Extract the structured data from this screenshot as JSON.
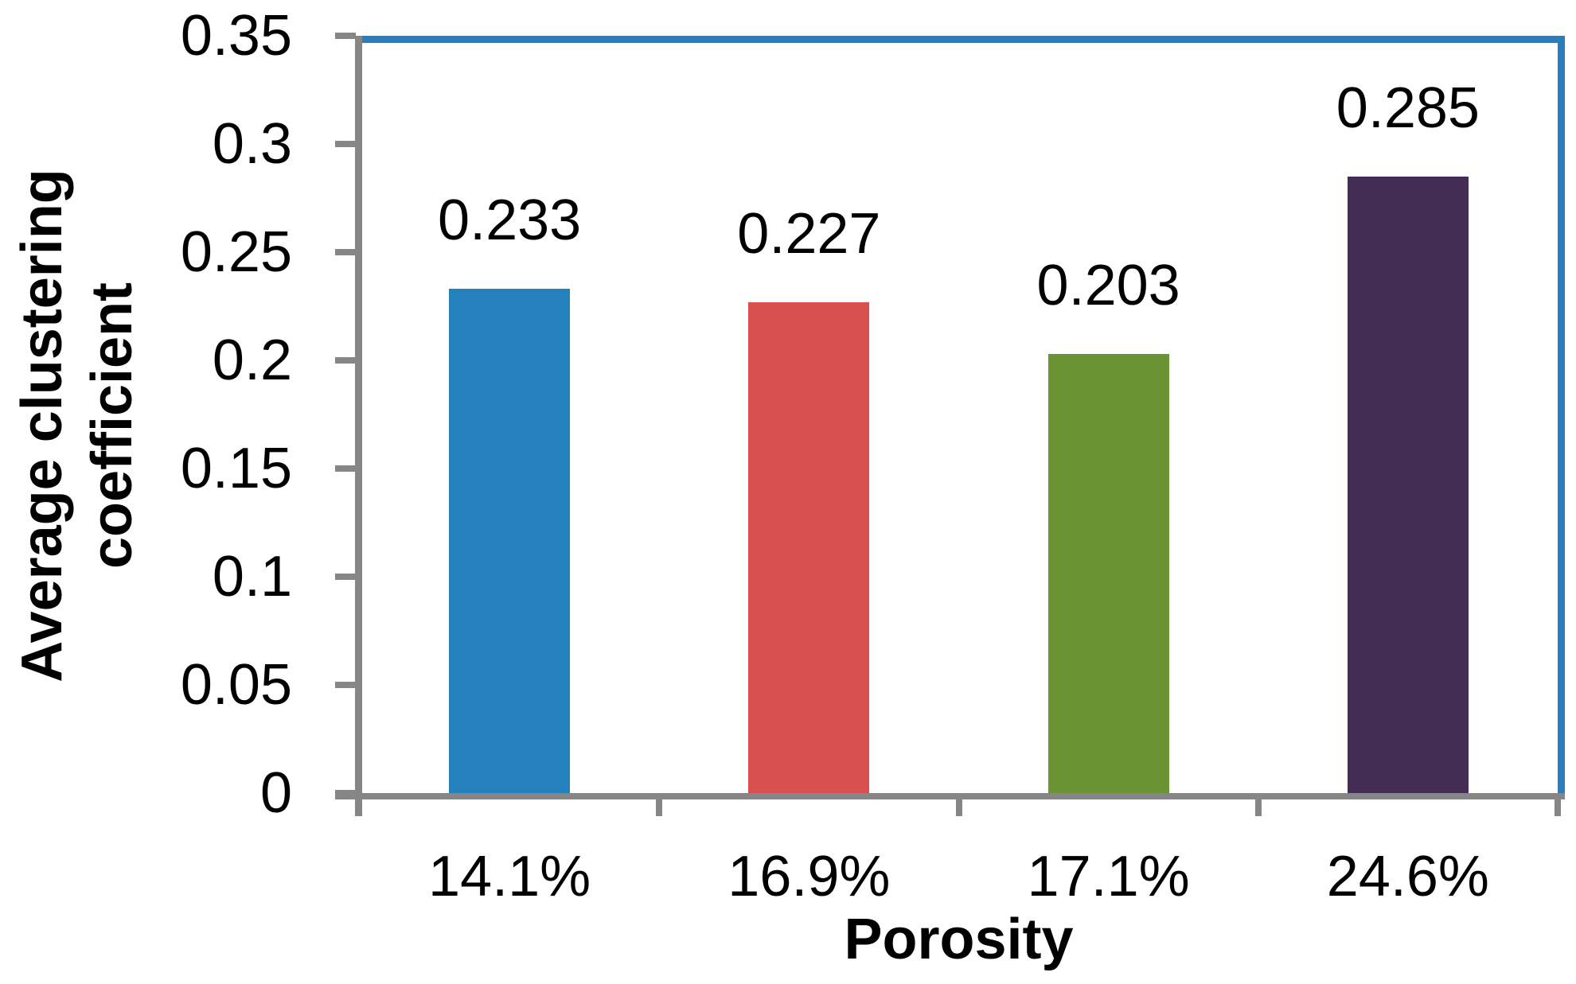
{
  "chart_data": {
    "type": "bar",
    "title": "",
    "xlabel": "Porosity",
    "ylabel": "Average clustering coefficient",
    "ylabel_lines": [
      "Average clustering",
      "coefficient"
    ],
    "categories": [
      "14.1%",
      "16.9%",
      "17.1%",
      "24.6%"
    ],
    "values": [
      0.233,
      0.227,
      0.203,
      0.285
    ],
    "bar_value_labels": [
      "0.233",
      "0.227",
      "0.203",
      "0.285"
    ],
    "bar_colors": [
      "#2580BE",
      "#DA4F4F",
      "#6A9434",
      "#432D56"
    ],
    "ylim": [
      0,
      0.35
    ],
    "ytick_step": 0.05,
    "ytick_labels": [
      "0",
      "0.05",
      "0.1",
      "0.15",
      "0.2",
      "0.25",
      "0.3",
      "0.35"
    ],
    "grid": false,
    "legend": null,
    "colors": {
      "axis": "#868686",
      "plot_border": "#2A7EBD",
      "text": "#000000",
      "background": "#FFFFFF"
    }
  }
}
